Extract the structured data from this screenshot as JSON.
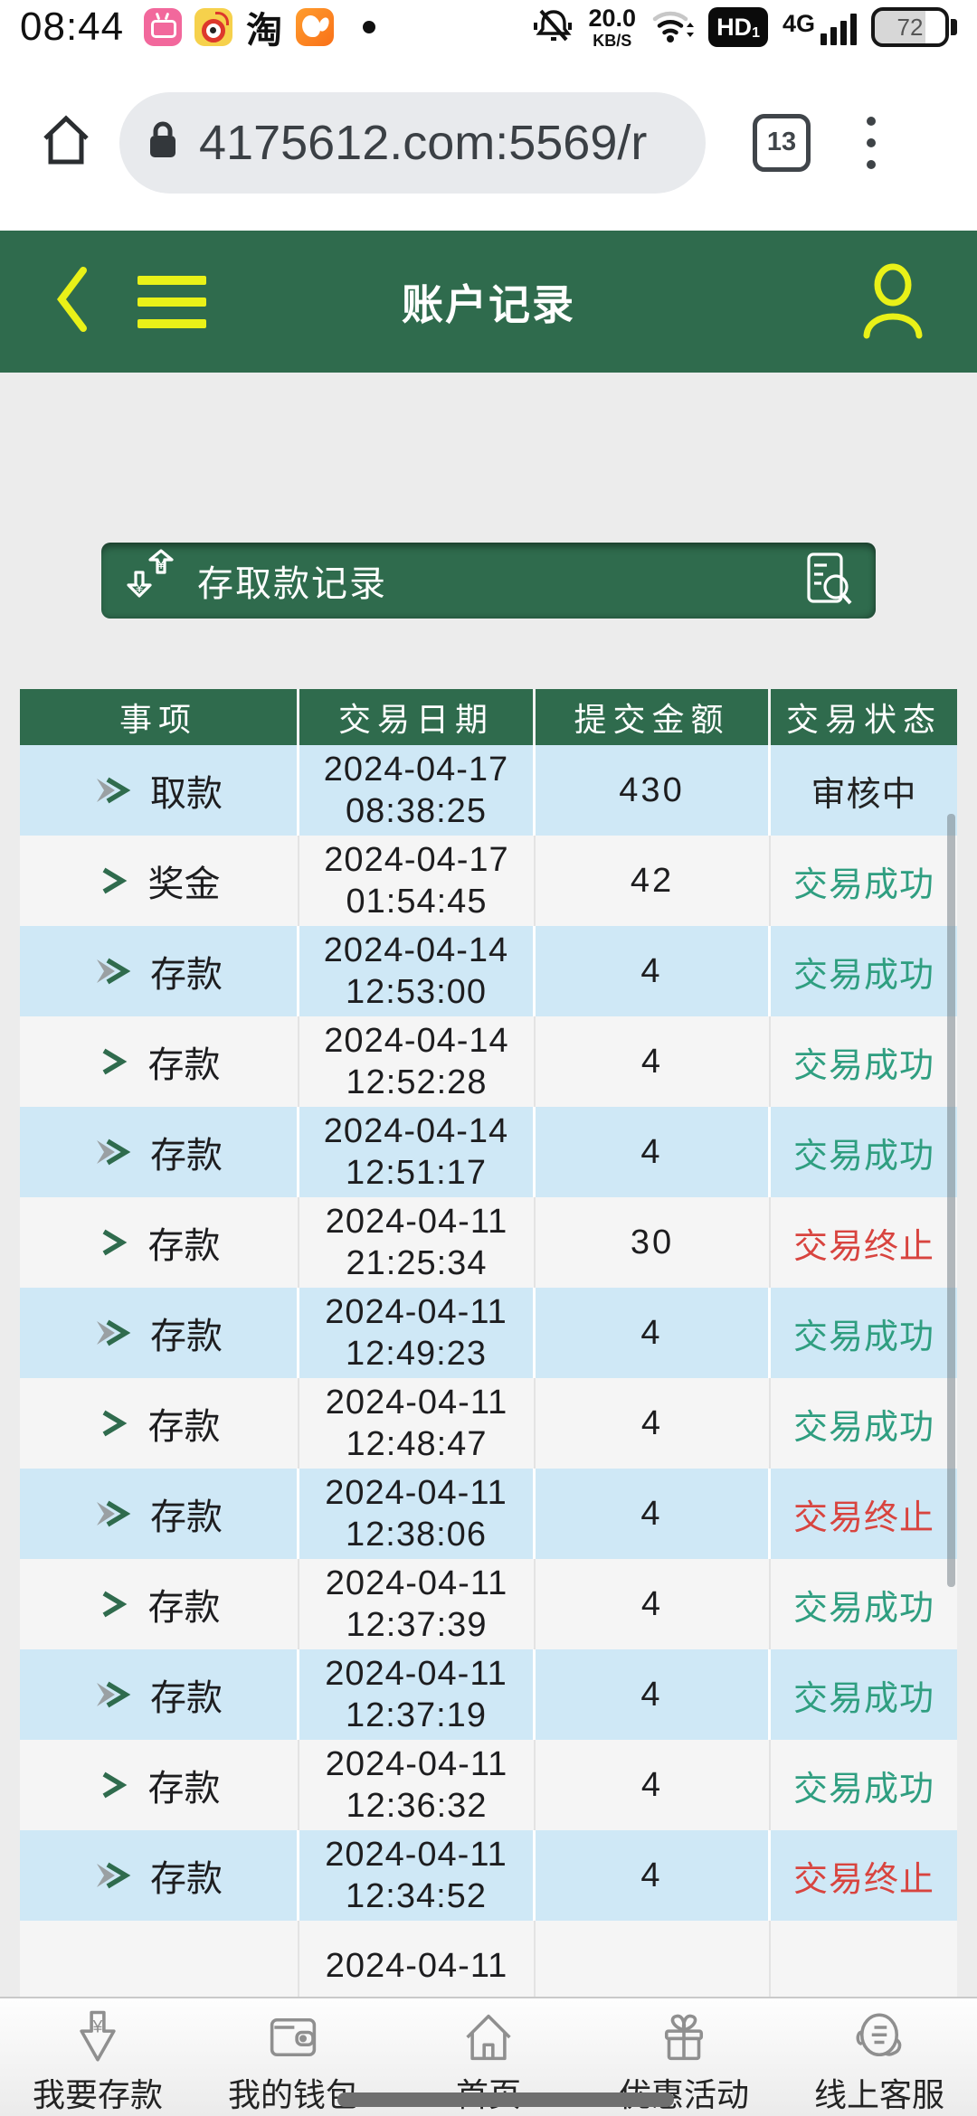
{
  "status_bar": {
    "time": "08:44",
    "net_speed": "20.0",
    "net_speed_unit": "KB/S",
    "hd_label": "HD",
    "hd_sub": "1",
    "network_type": "4G",
    "battery_level": "72",
    "app_icons": [
      "bilibili",
      "weibo",
      "taobao",
      "uc-browser"
    ],
    "taobao_char": "淘"
  },
  "browser": {
    "url": "4175612.com:5569/r",
    "tab_count": "13"
  },
  "app_header": {
    "title": "账户记录"
  },
  "banner": {
    "title": "存取款记录",
    "left_icon": "deposit-withdraw-icon",
    "right_icon": "search-records-icon"
  },
  "table": {
    "headers": [
      "事项",
      "交易日期",
      "提交金额",
      "交易状态"
    ],
    "rows": [
      {
        "item": "取款",
        "date": "2024-04-17",
        "time": "08:38:25",
        "amount": "430",
        "status": "审核中",
        "status_type": "pending"
      },
      {
        "item": "奖金",
        "date": "2024-04-17",
        "time": "01:54:45",
        "amount": "42",
        "status": "交易成功",
        "status_type": "success"
      },
      {
        "item": "存款",
        "date": "2024-04-14",
        "time": "12:53:00",
        "amount": "4",
        "status": "交易成功",
        "status_type": "success"
      },
      {
        "item": "存款",
        "date": "2024-04-14",
        "time": "12:52:28",
        "amount": "4",
        "status": "交易成功",
        "status_type": "success"
      },
      {
        "item": "存款",
        "date": "2024-04-14",
        "time": "12:51:17",
        "amount": "4",
        "status": "交易成功",
        "status_type": "success"
      },
      {
        "item": "存款",
        "date": "2024-04-11",
        "time": "21:25:34",
        "amount": "30",
        "status": "交易终止",
        "status_type": "terminated"
      },
      {
        "item": "存款",
        "date": "2024-04-11",
        "time": "12:49:23",
        "amount": "4",
        "status": "交易成功",
        "status_type": "success"
      },
      {
        "item": "存款",
        "date": "2024-04-11",
        "time": "12:48:47",
        "amount": "4",
        "status": "交易成功",
        "status_type": "success"
      },
      {
        "item": "存款",
        "date": "2024-04-11",
        "time": "12:38:06",
        "amount": "4",
        "status": "交易终止",
        "status_type": "terminated"
      },
      {
        "item": "存款",
        "date": "2024-04-11",
        "time": "12:37:39",
        "amount": "4",
        "status": "交易成功",
        "status_type": "success"
      },
      {
        "item": "存款",
        "date": "2024-04-11",
        "time": "12:37:19",
        "amount": "4",
        "status": "交易成功",
        "status_type": "success"
      },
      {
        "item": "存款",
        "date": "2024-04-11",
        "time": "12:36:32",
        "amount": "4",
        "status": "交易成功",
        "status_type": "success"
      },
      {
        "item": "存款",
        "date": "2024-04-11",
        "time": "12:34:52",
        "amount": "4",
        "status": "交易终止",
        "status_type": "terminated"
      }
    ],
    "partial_row": {
      "date": "2024-04-11"
    }
  },
  "bottom_nav": {
    "items": [
      {
        "name": "deposit",
        "label": "我要存款",
        "icon": "deposit-icon"
      },
      {
        "name": "wallet",
        "label": "我的钱包",
        "icon": "wallet-icon"
      },
      {
        "name": "home",
        "label": "首页",
        "icon": "home-icon"
      },
      {
        "name": "promotions",
        "label": "优惠活动",
        "icon": "gift-icon"
      },
      {
        "name": "service",
        "label": "线上客服",
        "icon": "customer-service-icon"
      }
    ]
  },
  "colors": {
    "header_green": "#2f6b4d",
    "accent_yellow": "#e9f118",
    "row_blue": "#cfe8f6",
    "row_gray": "#f5f5f5",
    "status_success": "#2f9e80",
    "status_terminated": "#d8443f",
    "status_pending": "#222222"
  }
}
